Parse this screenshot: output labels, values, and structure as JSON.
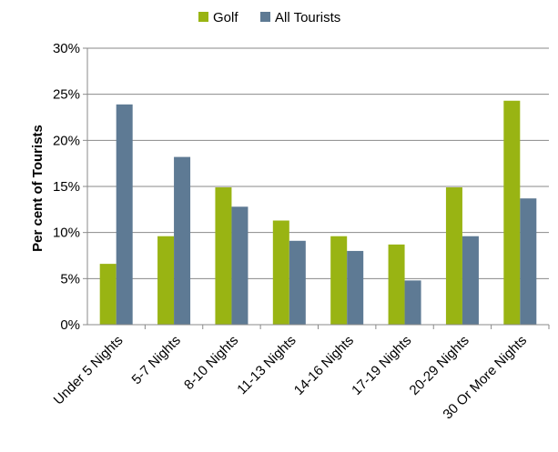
{
  "chart_data": {
    "type": "bar",
    "title": "",
    "xlabel": "",
    "ylabel": "Per cent of Tourists",
    "categories": [
      "Under 5 Nights",
      "5-7 Nights",
      "8-10 Nights",
      "11-13 Nights",
      "14-16 Nights",
      "17-19 Nights",
      "20-29 Nights",
      "30 Or More Nights"
    ],
    "series": [
      {
        "name": "Golf",
        "color": "#99b413",
        "values": [
          6.6,
          9.6,
          14.9,
          11.3,
          9.6,
          8.7,
          14.9,
          24.3
        ]
      },
      {
        "name": "All Tourists",
        "color": "#5e7a94",
        "values": [
          23.9,
          18.2,
          12.8,
          9.1,
          8.0,
          4.8,
          9.6,
          13.7
        ]
      }
    ],
    "ylim": [
      0,
      30
    ],
    "yticks": [
      0,
      5,
      10,
      15,
      20,
      25,
      30
    ],
    "ytick_labels": [
      "0%",
      "5%",
      "10%",
      "15%",
      "20%",
      "25%",
      "30%"
    ],
    "grid": true,
    "legend_position": "top-center"
  }
}
